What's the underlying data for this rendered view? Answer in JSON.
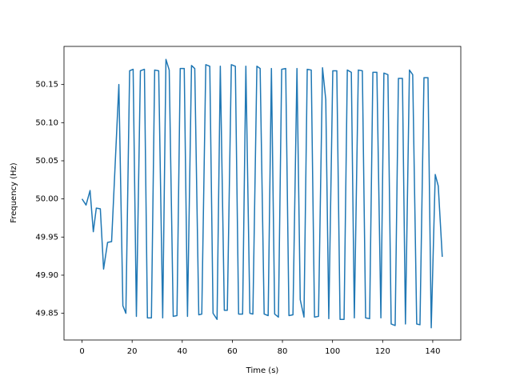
{
  "chart_data": {
    "type": "line",
    "x_label": "Time (s)",
    "y_label": "Frequency (Hz)",
    "color": "#1f77b4",
    "x": [
      0,
      1.6,
      3.2,
      4.5,
      5.7,
      7.3,
      8.6,
      10.2,
      11.8,
      14.7,
      16.3,
      17.5,
      19,
      20.4,
      21.7,
      23.3,
      24.9,
      26.1,
      27.7,
      29,
      30.6,
      32.2,
      33.5,
      34.8,
      36.4,
      37.9,
      39.2,
      40.8,
      42.1,
      43.7,
      45,
      46.6,
      47.8,
      49.4,
      51,
      52.3,
      53.9,
      55.2,
      56.8,
      58,
      59.6,
      61.2,
      62.5,
      64.1,
      65.4,
      67,
      68.2,
      69.8,
      71.1,
      72.7,
      74.3,
      75.6,
      76.9,
      78.4,
      79.7,
      81.3,
      82.6,
      84.2,
      85.8,
      87.1,
      88.6,
      89.9,
      91.5,
      92.8,
      94.4,
      96,
      97.3,
      98.5,
      100.1,
      101.7,
      103,
      104.6,
      105.9,
      107.5,
      108.7,
      110.3,
      111.9,
      113.2,
      114.8,
      116.1,
      117.7,
      119.3,
      120.5,
      122.1,
      123.4,
      125,
      126.3,
      127.9,
      129.1,
      130.7,
      132,
      133.6,
      134.9,
      136.5,
      138.1,
      139.4,
      141,
      142.2,
      143.8
    ],
    "values": [
      50.0,
      49.992,
      50.011,
      49.957,
      49.988,
      49.987,
      49.908,
      49.943,
      49.944,
      50.15,
      49.86,
      49.85,
      50.168,
      50.17,
      49.846,
      50.168,
      50.17,
      49.844,
      49.844,
      50.169,
      50.168,
      49.844,
      50.183,
      50.169,
      49.846,
      49.847,
      50.171,
      50.171,
      49.846,
      50.175,
      50.171,
      49.848,
      49.849,
      50.176,
      50.174,
      49.85,
      49.842,
      50.174,
      49.854,
      49.854,
      50.176,
      50.174,
      49.849,
      49.849,
      50.174,
      49.85,
      49.849,
      50.174,
      50.171,
      49.849,
      49.847,
      50.171,
      49.849,
      49.845,
      50.17,
      50.171,
      49.847,
      49.848,
      50.171,
      49.868,
      49.845,
      50.17,
      50.169,
      49.845,
      49.846,
      50.172,
      50.13,
      49.843,
      50.168,
      50.168,
      49.842,
      49.842,
      50.169,
      50.166,
      49.844,
      50.169,
      50.168,
      49.844,
      49.843,
      50.166,
      50.166,
      49.844,
      50.165,
      50.163,
      49.836,
      49.834,
      50.158,
      50.158,
      49.836,
      50.169,
      50.163,
      49.836,
      49.835,
      50.159,
      50.159,
      49.831,
      50.032,
      50.017,
      49.924
    ],
    "xlim": [
      -7.2,
      151.2
    ],
    "xticks": [
      0,
      20,
      40,
      60,
      80,
      100,
      120,
      140
    ],
    "ylim": [
      49.815,
      50.2
    ],
    "yticks": [
      49.85,
      {
        "value": 49.9,
        "label": "49.90"
      },
      49.95,
      {
        "value": 50,
        "label": "50.00"
      },
      50.05,
      {
        "value": 50.1,
        "label": "50.10"
      },
      50.15
    ]
  }
}
